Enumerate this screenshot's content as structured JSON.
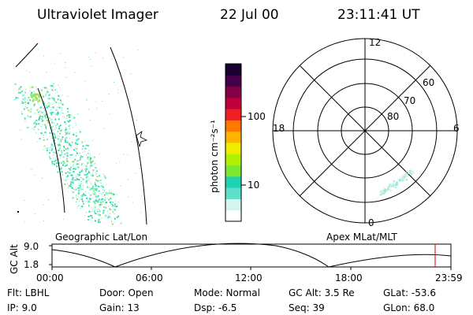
{
  "header": {
    "instrument": "Ultraviolet Imager",
    "date": "22 Jul 00",
    "time": "23:11:41 UT"
  },
  "colorbar": {
    "unit_label": "photon cm⁻²s⁻¹",
    "ticks": [
      "100",
      "10"
    ],
    "colors": [
      "#ffffff",
      "#d6f4ef",
      "#5fe0c8",
      "#1fd4b2",
      "#7ce830",
      "#b2ef00",
      "#f0ec00",
      "#ffb400",
      "#ff7800",
      "#f02020",
      "#c0003a",
      "#820046",
      "#430048",
      "#1a0030"
    ]
  },
  "geo_panel": {
    "caption": "Geographic Lat/Lon",
    "aurora_color": "#33e0b0"
  },
  "polar_panel": {
    "caption": "Apex MLat/MLT",
    "mlt_labels": {
      "top": "12",
      "left": "18",
      "right": "6",
      "bottom": "0"
    },
    "lat_labels": [
      "60",
      "70",
      "80"
    ]
  },
  "altitude_plot": {
    "ylabel": "GC Alt",
    "y_ticks": [
      "9.0",
      "1.8"
    ],
    "x_ticks": [
      "00:00",
      "06:00",
      "12:00",
      "18:00",
      "23:59"
    ],
    "current_marker_color": "#cc0000"
  },
  "info": {
    "filter": "Flt: LBHL",
    "ip": "IP:  9.0",
    "door": "Door: Open",
    "gain": "Gain: 13",
    "mode": "Mode: Normal",
    "dsp": "Dsp:    -6.5",
    "gc_alt": "GC Alt: 3.5 Re",
    "seq": "Seq: 39",
    "glat": "GLat:  -53.6",
    "glon": "GLon:  68.0"
  }
}
